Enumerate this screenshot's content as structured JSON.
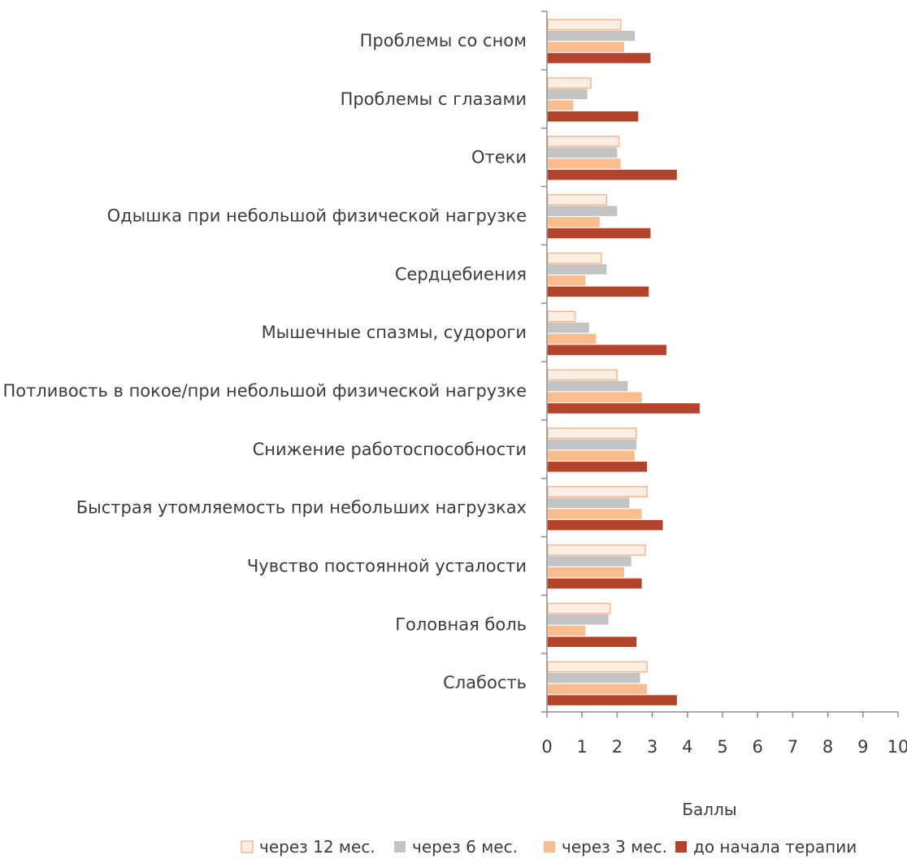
{
  "chart_data": {
    "type": "bar",
    "orientation": "horizontal",
    "categories": [
      "Проблемы со сном",
      "Проблемы с глазами",
      "Отеки",
      "Одышка при небольшой физической нагрузке",
      "Сердцебиения",
      "Мышечные спазмы, судороги",
      "Потливость в покое/при небольшой физической нагрузке",
      "Снижение работоспособности",
      "Быстрая утомляемость при небольших нагрузках",
      "Чувство постоянной усталости",
      "Головная боль",
      "Слабость"
    ],
    "series": [
      {
        "name": "через 12 мес.",
        "fill": "#fdeee3",
        "stroke": "#f6b78c",
        "values": [
          2.1,
          1.25,
          2.05,
          1.7,
          1.55,
          0.8,
          2.0,
          2.55,
          2.85,
          2.8,
          1.8,
          2.85
        ]
      },
      {
        "name": "через 6 мес.",
        "fill": "#c3c3c3",
        "stroke": "#c3c3c3",
        "values": [
          2.5,
          1.15,
          2.0,
          2.0,
          1.7,
          1.2,
          2.3,
          2.55,
          2.35,
          2.4,
          1.75,
          2.65
        ]
      },
      {
        "name": "через 3 мес.",
        "fill": "#fbbd8d",
        "stroke": "#fbbd8d",
        "values": [
          2.2,
          0.75,
          2.1,
          1.5,
          1.1,
          1.4,
          2.7,
          2.5,
          2.7,
          2.2,
          1.1,
          2.85
        ]
      },
      {
        "name": "до начала терапии",
        "fill": "#b3432a",
        "stroke": "#b3432a",
        "values": [
          2.95,
          2.6,
          3.7,
          2.95,
          2.9,
          3.4,
          4.35,
          2.85,
          3.3,
          2.7,
          2.55,
          3.7
        ]
      }
    ],
    "xlim": [
      0,
      10
    ],
    "xticks": [
      "0",
      "1",
      "2",
      "3",
      "4",
      "5",
      "6",
      "7",
      "8",
      "9",
      "10"
    ],
    "xlabel": "Баллы",
    "legend_position": "bottom",
    "grid": false
  }
}
